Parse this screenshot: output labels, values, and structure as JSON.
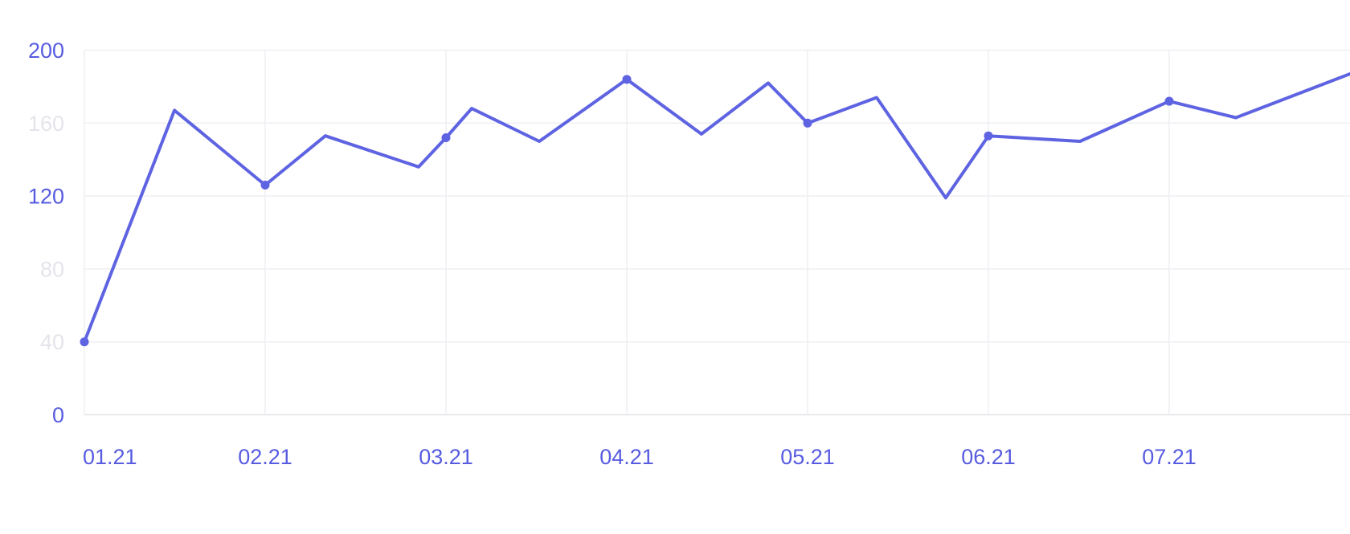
{
  "page": {
    "background_color": "#ffffff",
    "title": ""
  },
  "chart_data": {
    "type": "line",
    "title": "",
    "subtitle": "",
    "legend": "none",
    "grid": {
      "horizontal": true,
      "vertical": true,
      "gridline_color": "#EFEFF3",
      "baseline_color": "#E3E3E9"
    },
    "line_color": "#5E63E2",
    "marker_color": "#5E63E2",
    "x_axis": {
      "label": "",
      "tick_labels": [
        "01.21",
        "02.21",
        "03.21",
        "04.21",
        "05.21",
        "06.21",
        "07.21"
      ],
      "tick_label_color": "#575CE0",
      "months_visible": 7
    },
    "y_axis": {
      "label": "",
      "range": [
        0,
        200
      ],
      "tick_interval": 40,
      "ticks": [
        {
          "label": "200",
          "value": 200,
          "emphasized": true
        },
        {
          "label": "160",
          "value": 160,
          "emphasized": false
        },
        {
          "label": "120",
          "value": 120,
          "emphasized": true
        },
        {
          "label": "80",
          "value": 80,
          "emphasized": false
        },
        {
          "label": "40",
          "value": 40,
          "emphasized": false
        },
        {
          "label": "0",
          "value": 0,
          "emphasized": true
        }
      ],
      "emphasized_label_color": "#575CE0",
      "muted_label_color": "#E4E4EB"
    },
    "points": [
      {
        "x_months": 0.0,
        "value": 40,
        "marker": true
      },
      {
        "x_months": 0.498,
        "value": 167,
        "marker": false
      },
      {
        "x_months": 1.0,
        "value": 126,
        "marker": true
      },
      {
        "x_months": 1.333,
        "value": 153,
        "marker": false
      },
      {
        "x_months": 1.849,
        "value": 136,
        "marker": false
      },
      {
        "x_months": 2.0,
        "value": 152,
        "marker": true
      },
      {
        "x_months": 2.142,
        "value": 168,
        "marker": false
      },
      {
        "x_months": 2.516,
        "value": 150,
        "marker": false
      },
      {
        "x_months": 3.0,
        "value": 184,
        "marker": true
      },
      {
        "x_months": 3.413,
        "value": 154,
        "marker": false
      },
      {
        "x_months": 3.782,
        "value": 182,
        "marker": false
      },
      {
        "x_months": 4.0,
        "value": 160,
        "marker": true
      },
      {
        "x_months": 4.382,
        "value": 174,
        "marker": false
      },
      {
        "x_months": 4.764,
        "value": 119,
        "marker": false
      },
      {
        "x_months": 5.0,
        "value": 153,
        "marker": true
      },
      {
        "x_months": 5.507,
        "value": 150,
        "marker": false
      },
      {
        "x_months": 6.0,
        "value": 172,
        "marker": true
      },
      {
        "x_months": 6.369,
        "value": 163,
        "marker": false
      },
      {
        "x_months": 7.0,
        "value": 187,
        "marker": false,
        "clipped_at_right_edge": true
      }
    ]
  }
}
